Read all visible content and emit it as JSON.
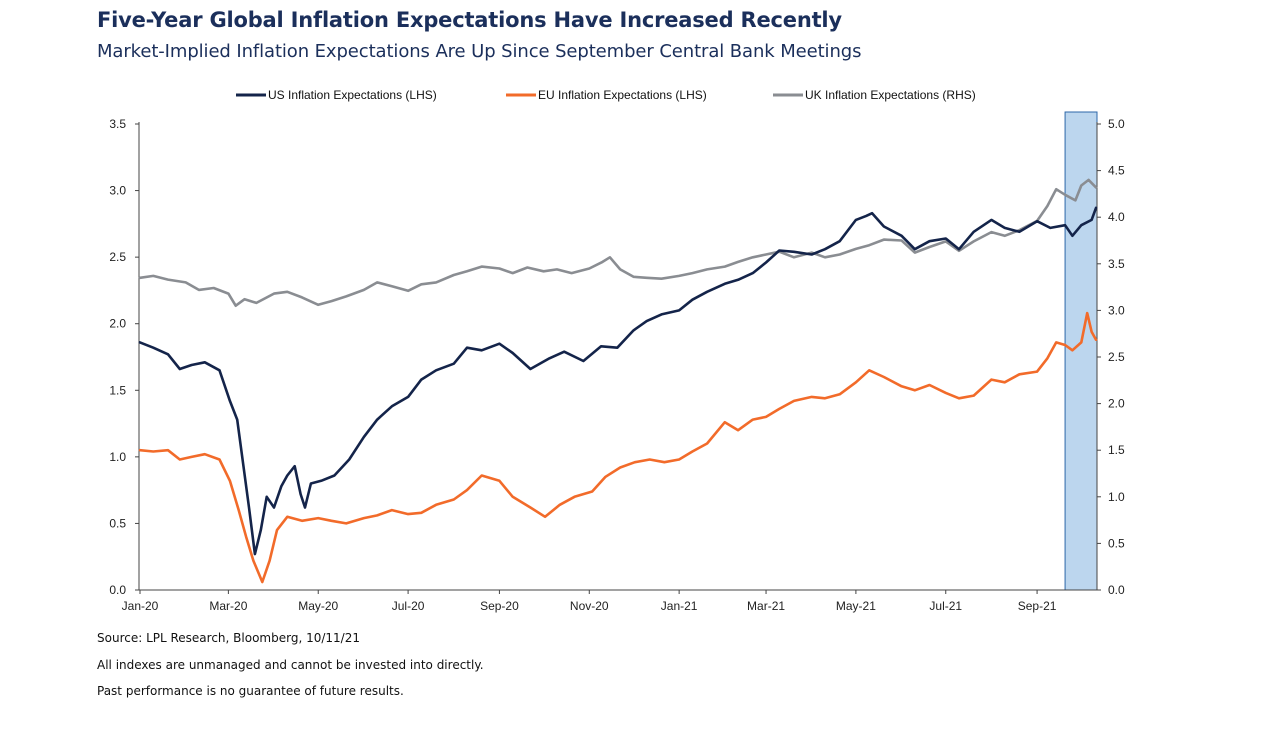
{
  "title": "Five-Year Global Inflation Expectations Have Increased Recently",
  "subtitle": "Market-Implied Inflation Expectations Are Up Since September Central Bank Meetings",
  "footnotes": {
    "source": "Source: LPL Research, Bloomberg, 10/11/21",
    "note1": "All indexes are unmanaged and cannot be invested into directly.",
    "note2": "Past performance is no guarantee of future results."
  },
  "colors": {
    "us": "#14244a",
    "eu": "#f26b2a",
    "uk": "#8a8d92",
    "highlight_fill": "#bcd6ee",
    "highlight_stroke": "#2d67a8",
    "axis": "#444444"
  },
  "chart_data": {
    "type": "line",
    "title": "Five-Year Global Inflation Expectations Have Increased Recently",
    "subtitle": "Market-Implied Inflation Expectations Are Up Since September Central Bank Meetings",
    "legend_position": "top-center",
    "grid": false,
    "x_axis": {
      "type": "date",
      "range": [
        "2020-01-01",
        "2021-10-11"
      ],
      "ticks": [
        "2020-01-01",
        "2020-03-01",
        "2020-05-01",
        "2020-07-01",
        "2020-09-01",
        "2020-11-01",
        "2021-01-01",
        "2021-03-01",
        "2021-05-01",
        "2021-07-01",
        "2021-09-01"
      ],
      "tick_labels": [
        "Jan-20",
        "Mar-20",
        "May-20",
        "Jul-20",
        "Sep-20",
        "Nov-20",
        "Jan-21",
        "Mar-21",
        "May-21",
        "Jul-21",
        "Sep-21"
      ]
    },
    "y_left": {
      "range": [
        0,
        3.5
      ],
      "ticks": [
        0,
        0.5,
        1,
        1.5,
        2,
        2.5,
        3,
        3.5
      ],
      "tick_labels": [
        "0.0",
        "0.5",
        "1.0",
        "1.5",
        "2.0",
        "2.5",
        "3.0",
        "3.5"
      ]
    },
    "y_right": {
      "range": [
        0,
        5
      ],
      "ticks": [
        0,
        0.5,
        1,
        1.5,
        2,
        2.5,
        3,
        3.5,
        4,
        4.5,
        5
      ],
      "tick_labels": [
        "0.0",
        "0.5",
        "1.0",
        "1.5",
        "2.0",
        "2.5",
        "3.0",
        "3.5",
        "4.0",
        "4.5",
        "5.0"
      ]
    },
    "highlight_period": {
      "start": "2021-09-20",
      "end": "2021-10-11"
    },
    "series": [
      {
        "name": "US Inflation Expectations (LHS)",
        "axis": "left",
        "color": "#14244a",
        "points": [
          [
            "2020-01-01",
            1.86
          ],
          [
            "2020-01-10",
            1.82
          ],
          [
            "2020-01-20",
            1.77
          ],
          [
            "2020-01-28",
            1.66
          ],
          [
            "2020-02-05",
            1.69
          ],
          [
            "2020-02-14",
            1.71
          ],
          [
            "2020-02-24",
            1.65
          ],
          [
            "2020-03-02",
            1.42
          ],
          [
            "2020-03-07",
            1.28
          ],
          [
            "2020-03-11",
            0.95
          ],
          [
            "2020-03-15",
            0.62
          ],
          [
            "2020-03-19",
            0.27
          ],
          [
            "2020-03-23",
            0.45
          ],
          [
            "2020-03-27",
            0.7
          ],
          [
            "2020-04-01",
            0.62
          ],
          [
            "2020-04-06",
            0.78
          ],
          [
            "2020-04-10",
            0.86
          ],
          [
            "2020-04-15",
            0.93
          ],
          [
            "2020-04-19",
            0.72
          ],
          [
            "2020-04-22",
            0.62
          ],
          [
            "2020-04-26",
            0.8
          ],
          [
            "2020-05-03",
            0.82
          ],
          [
            "2020-05-12",
            0.86
          ],
          [
            "2020-05-22",
            0.98
          ],
          [
            "2020-06-01",
            1.15
          ],
          [
            "2020-06-10",
            1.28
          ],
          [
            "2020-06-20",
            1.38
          ],
          [
            "2020-07-01",
            1.45
          ],
          [
            "2020-07-10",
            1.58
          ],
          [
            "2020-07-20",
            1.65
          ],
          [
            "2020-08-01",
            1.7
          ],
          [
            "2020-08-10",
            1.82
          ],
          [
            "2020-08-20",
            1.8
          ],
          [
            "2020-09-01",
            1.85
          ],
          [
            "2020-09-10",
            1.78
          ],
          [
            "2020-09-22",
            1.66
          ],
          [
            "2020-10-05",
            1.74
          ],
          [
            "2020-10-15",
            1.79
          ],
          [
            "2020-10-28",
            1.72
          ],
          [
            "2020-11-09",
            1.83
          ],
          [
            "2020-11-20",
            1.82
          ],
          [
            "2020-12-01",
            1.95
          ],
          [
            "2020-12-10",
            2.02
          ],
          [
            "2020-12-20",
            2.07
          ],
          [
            "2021-01-01",
            2.1
          ],
          [
            "2021-01-10",
            2.18
          ],
          [
            "2021-01-20",
            2.24
          ],
          [
            "2021-02-01",
            2.3
          ],
          [
            "2021-02-10",
            2.33
          ],
          [
            "2021-02-20",
            2.38
          ],
          [
            "2021-03-01",
            2.46
          ],
          [
            "2021-03-10",
            2.55
          ],
          [
            "2021-03-20",
            2.54
          ],
          [
            "2021-04-01",
            2.52
          ],
          [
            "2021-04-10",
            2.56
          ],
          [
            "2021-04-20",
            2.62
          ],
          [
            "2021-05-01",
            2.78
          ],
          [
            "2021-05-08",
            2.81
          ],
          [
            "2021-05-12",
            2.83
          ],
          [
            "2021-05-20",
            2.73
          ],
          [
            "2021-06-01",
            2.66
          ],
          [
            "2021-06-10",
            2.56
          ],
          [
            "2021-06-20",
            2.62
          ],
          [
            "2021-07-01",
            2.64
          ],
          [
            "2021-07-10",
            2.56
          ],
          [
            "2021-07-20",
            2.69
          ],
          [
            "2021-08-01",
            2.78
          ],
          [
            "2021-08-10",
            2.72
          ],
          [
            "2021-08-20",
            2.69
          ],
          [
            "2021-09-01",
            2.77
          ],
          [
            "2021-09-10",
            2.72
          ],
          [
            "2021-09-20",
            2.74
          ],
          [
            "2021-09-25",
            2.66
          ],
          [
            "2021-10-01",
            2.74
          ],
          [
            "2021-10-08",
            2.78
          ],
          [
            "2021-10-11",
            2.87
          ]
        ]
      },
      {
        "name": "EU Inflation Expectations (LHS)",
        "axis": "left",
        "color": "#f26b2a",
        "points": [
          [
            "2020-01-01",
            1.05
          ],
          [
            "2020-01-10",
            1.04
          ],
          [
            "2020-01-20",
            1.05
          ],
          [
            "2020-01-28",
            0.98
          ],
          [
            "2020-02-05",
            1.0
          ],
          [
            "2020-02-14",
            1.02
          ],
          [
            "2020-02-24",
            0.98
          ],
          [
            "2020-03-02",
            0.82
          ],
          [
            "2020-03-08",
            0.6
          ],
          [
            "2020-03-13",
            0.4
          ],
          [
            "2020-03-18",
            0.22
          ],
          [
            "2020-03-24",
            0.06
          ],
          [
            "2020-03-29",
            0.22
          ],
          [
            "2020-04-03",
            0.45
          ],
          [
            "2020-04-10",
            0.55
          ],
          [
            "2020-04-20",
            0.52
          ],
          [
            "2020-05-01",
            0.54
          ],
          [
            "2020-05-10",
            0.52
          ],
          [
            "2020-05-20",
            0.5
          ],
          [
            "2020-06-01",
            0.54
          ],
          [
            "2020-06-10",
            0.56
          ],
          [
            "2020-06-20",
            0.6
          ],
          [
            "2020-07-01",
            0.57
          ],
          [
            "2020-07-10",
            0.58
          ],
          [
            "2020-07-20",
            0.64
          ],
          [
            "2020-08-01",
            0.68
          ],
          [
            "2020-08-10",
            0.75
          ],
          [
            "2020-08-20",
            0.86
          ],
          [
            "2020-09-01",
            0.82
          ],
          [
            "2020-09-10",
            0.7
          ],
          [
            "2020-09-22",
            0.62
          ],
          [
            "2020-10-02",
            0.55
          ],
          [
            "2020-10-12",
            0.64
          ],
          [
            "2020-10-22",
            0.7
          ],
          [
            "2020-11-03",
            0.74
          ],
          [
            "2020-11-12",
            0.85
          ],
          [
            "2020-11-22",
            0.92
          ],
          [
            "2020-12-02",
            0.96
          ],
          [
            "2020-12-12",
            0.98
          ],
          [
            "2020-12-22",
            0.96
          ],
          [
            "2021-01-01",
            0.98
          ],
          [
            "2021-01-10",
            1.04
          ],
          [
            "2021-01-20",
            1.1
          ],
          [
            "2021-02-01",
            1.26
          ],
          [
            "2021-02-10",
            1.2
          ],
          [
            "2021-02-20",
            1.28
          ],
          [
            "2021-03-01",
            1.3
          ],
          [
            "2021-03-10",
            1.36
          ],
          [
            "2021-03-20",
            1.42
          ],
          [
            "2021-04-01",
            1.45
          ],
          [
            "2021-04-10",
            1.44
          ],
          [
            "2021-04-20",
            1.47
          ],
          [
            "2021-05-01",
            1.56
          ],
          [
            "2021-05-10",
            1.65
          ],
          [
            "2021-05-20",
            1.6
          ],
          [
            "2021-06-01",
            1.53
          ],
          [
            "2021-06-10",
            1.5
          ],
          [
            "2021-06-20",
            1.54
          ],
          [
            "2021-07-01",
            1.48
          ],
          [
            "2021-07-10",
            1.44
          ],
          [
            "2021-07-20",
            1.46
          ],
          [
            "2021-08-01",
            1.58
          ],
          [
            "2021-08-10",
            1.56
          ],
          [
            "2021-08-20",
            1.62
          ],
          [
            "2021-09-01",
            1.64
          ],
          [
            "2021-09-08",
            1.74
          ],
          [
            "2021-09-14",
            1.86
          ],
          [
            "2021-09-20",
            1.84
          ],
          [
            "2021-09-25",
            1.8
          ],
          [
            "2021-10-01",
            1.86
          ],
          [
            "2021-10-05",
            2.08
          ],
          [
            "2021-10-08",
            1.94
          ],
          [
            "2021-10-11",
            1.88
          ]
        ]
      },
      {
        "name": "UK Inflation Expectations (RHS)",
        "axis": "right",
        "color": "#8a8d92",
        "points": [
          [
            "2020-01-01",
            3.35
          ],
          [
            "2020-01-10",
            3.37
          ],
          [
            "2020-01-20",
            3.33
          ],
          [
            "2020-02-01",
            3.3
          ],
          [
            "2020-02-10",
            3.22
          ],
          [
            "2020-02-20",
            3.24
          ],
          [
            "2020-03-01",
            3.18
          ],
          [
            "2020-03-06",
            3.05
          ],
          [
            "2020-03-12",
            3.12
          ],
          [
            "2020-03-20",
            3.08
          ],
          [
            "2020-04-01",
            3.18
          ],
          [
            "2020-04-10",
            3.2
          ],
          [
            "2020-04-20",
            3.14
          ],
          [
            "2020-05-01",
            3.06
          ],
          [
            "2020-05-10",
            3.1
          ],
          [
            "2020-05-20",
            3.15
          ],
          [
            "2020-06-01",
            3.22
          ],
          [
            "2020-06-10",
            3.3
          ],
          [
            "2020-06-20",
            3.26
          ],
          [
            "2020-07-01",
            3.21
          ],
          [
            "2020-07-10",
            3.28
          ],
          [
            "2020-07-20",
            3.3
          ],
          [
            "2020-08-01",
            3.38
          ],
          [
            "2020-08-10",
            3.42
          ],
          [
            "2020-08-20",
            3.47
          ],
          [
            "2020-09-01",
            3.45
          ],
          [
            "2020-09-10",
            3.4
          ],
          [
            "2020-09-20",
            3.46
          ],
          [
            "2020-10-01",
            3.42
          ],
          [
            "2020-10-10",
            3.44
          ],
          [
            "2020-10-20",
            3.4
          ],
          [
            "2020-11-01",
            3.45
          ],
          [
            "2020-11-10",
            3.52
          ],
          [
            "2020-11-15",
            3.57
          ],
          [
            "2020-11-22",
            3.44
          ],
          [
            "2020-12-01",
            3.36
          ],
          [
            "2020-12-10",
            3.35
          ],
          [
            "2020-12-20",
            3.34
          ],
          [
            "2021-01-01",
            3.37
          ],
          [
            "2021-01-10",
            3.4
          ],
          [
            "2021-01-20",
            3.44
          ],
          [
            "2021-02-01",
            3.47
          ],
          [
            "2021-02-10",
            3.52
          ],
          [
            "2021-02-20",
            3.57
          ],
          [
            "2021-03-01",
            3.6
          ],
          [
            "2021-03-10",
            3.63
          ],
          [
            "2021-03-20",
            3.57
          ],
          [
            "2021-04-01",
            3.62
          ],
          [
            "2021-04-10",
            3.57
          ],
          [
            "2021-04-20",
            3.6
          ],
          [
            "2021-05-01",
            3.66
          ],
          [
            "2021-05-10",
            3.7
          ],
          [
            "2021-05-20",
            3.76
          ],
          [
            "2021-06-01",
            3.75
          ],
          [
            "2021-06-10",
            3.62
          ],
          [
            "2021-06-20",
            3.68
          ],
          [
            "2021-07-01",
            3.74
          ],
          [
            "2021-07-10",
            3.64
          ],
          [
            "2021-07-20",
            3.74
          ],
          [
            "2021-08-01",
            3.84
          ],
          [
            "2021-08-10",
            3.8
          ],
          [
            "2021-08-20",
            3.86
          ],
          [
            "2021-09-01",
            3.96
          ],
          [
            "2021-09-08",
            4.12
          ],
          [
            "2021-09-14",
            4.3
          ],
          [
            "2021-09-20",
            4.24
          ],
          [
            "2021-09-27",
            4.18
          ],
          [
            "2021-10-01",
            4.34
          ],
          [
            "2021-10-06",
            4.4
          ],
          [
            "2021-10-11",
            4.32
          ]
        ]
      }
    ]
  }
}
